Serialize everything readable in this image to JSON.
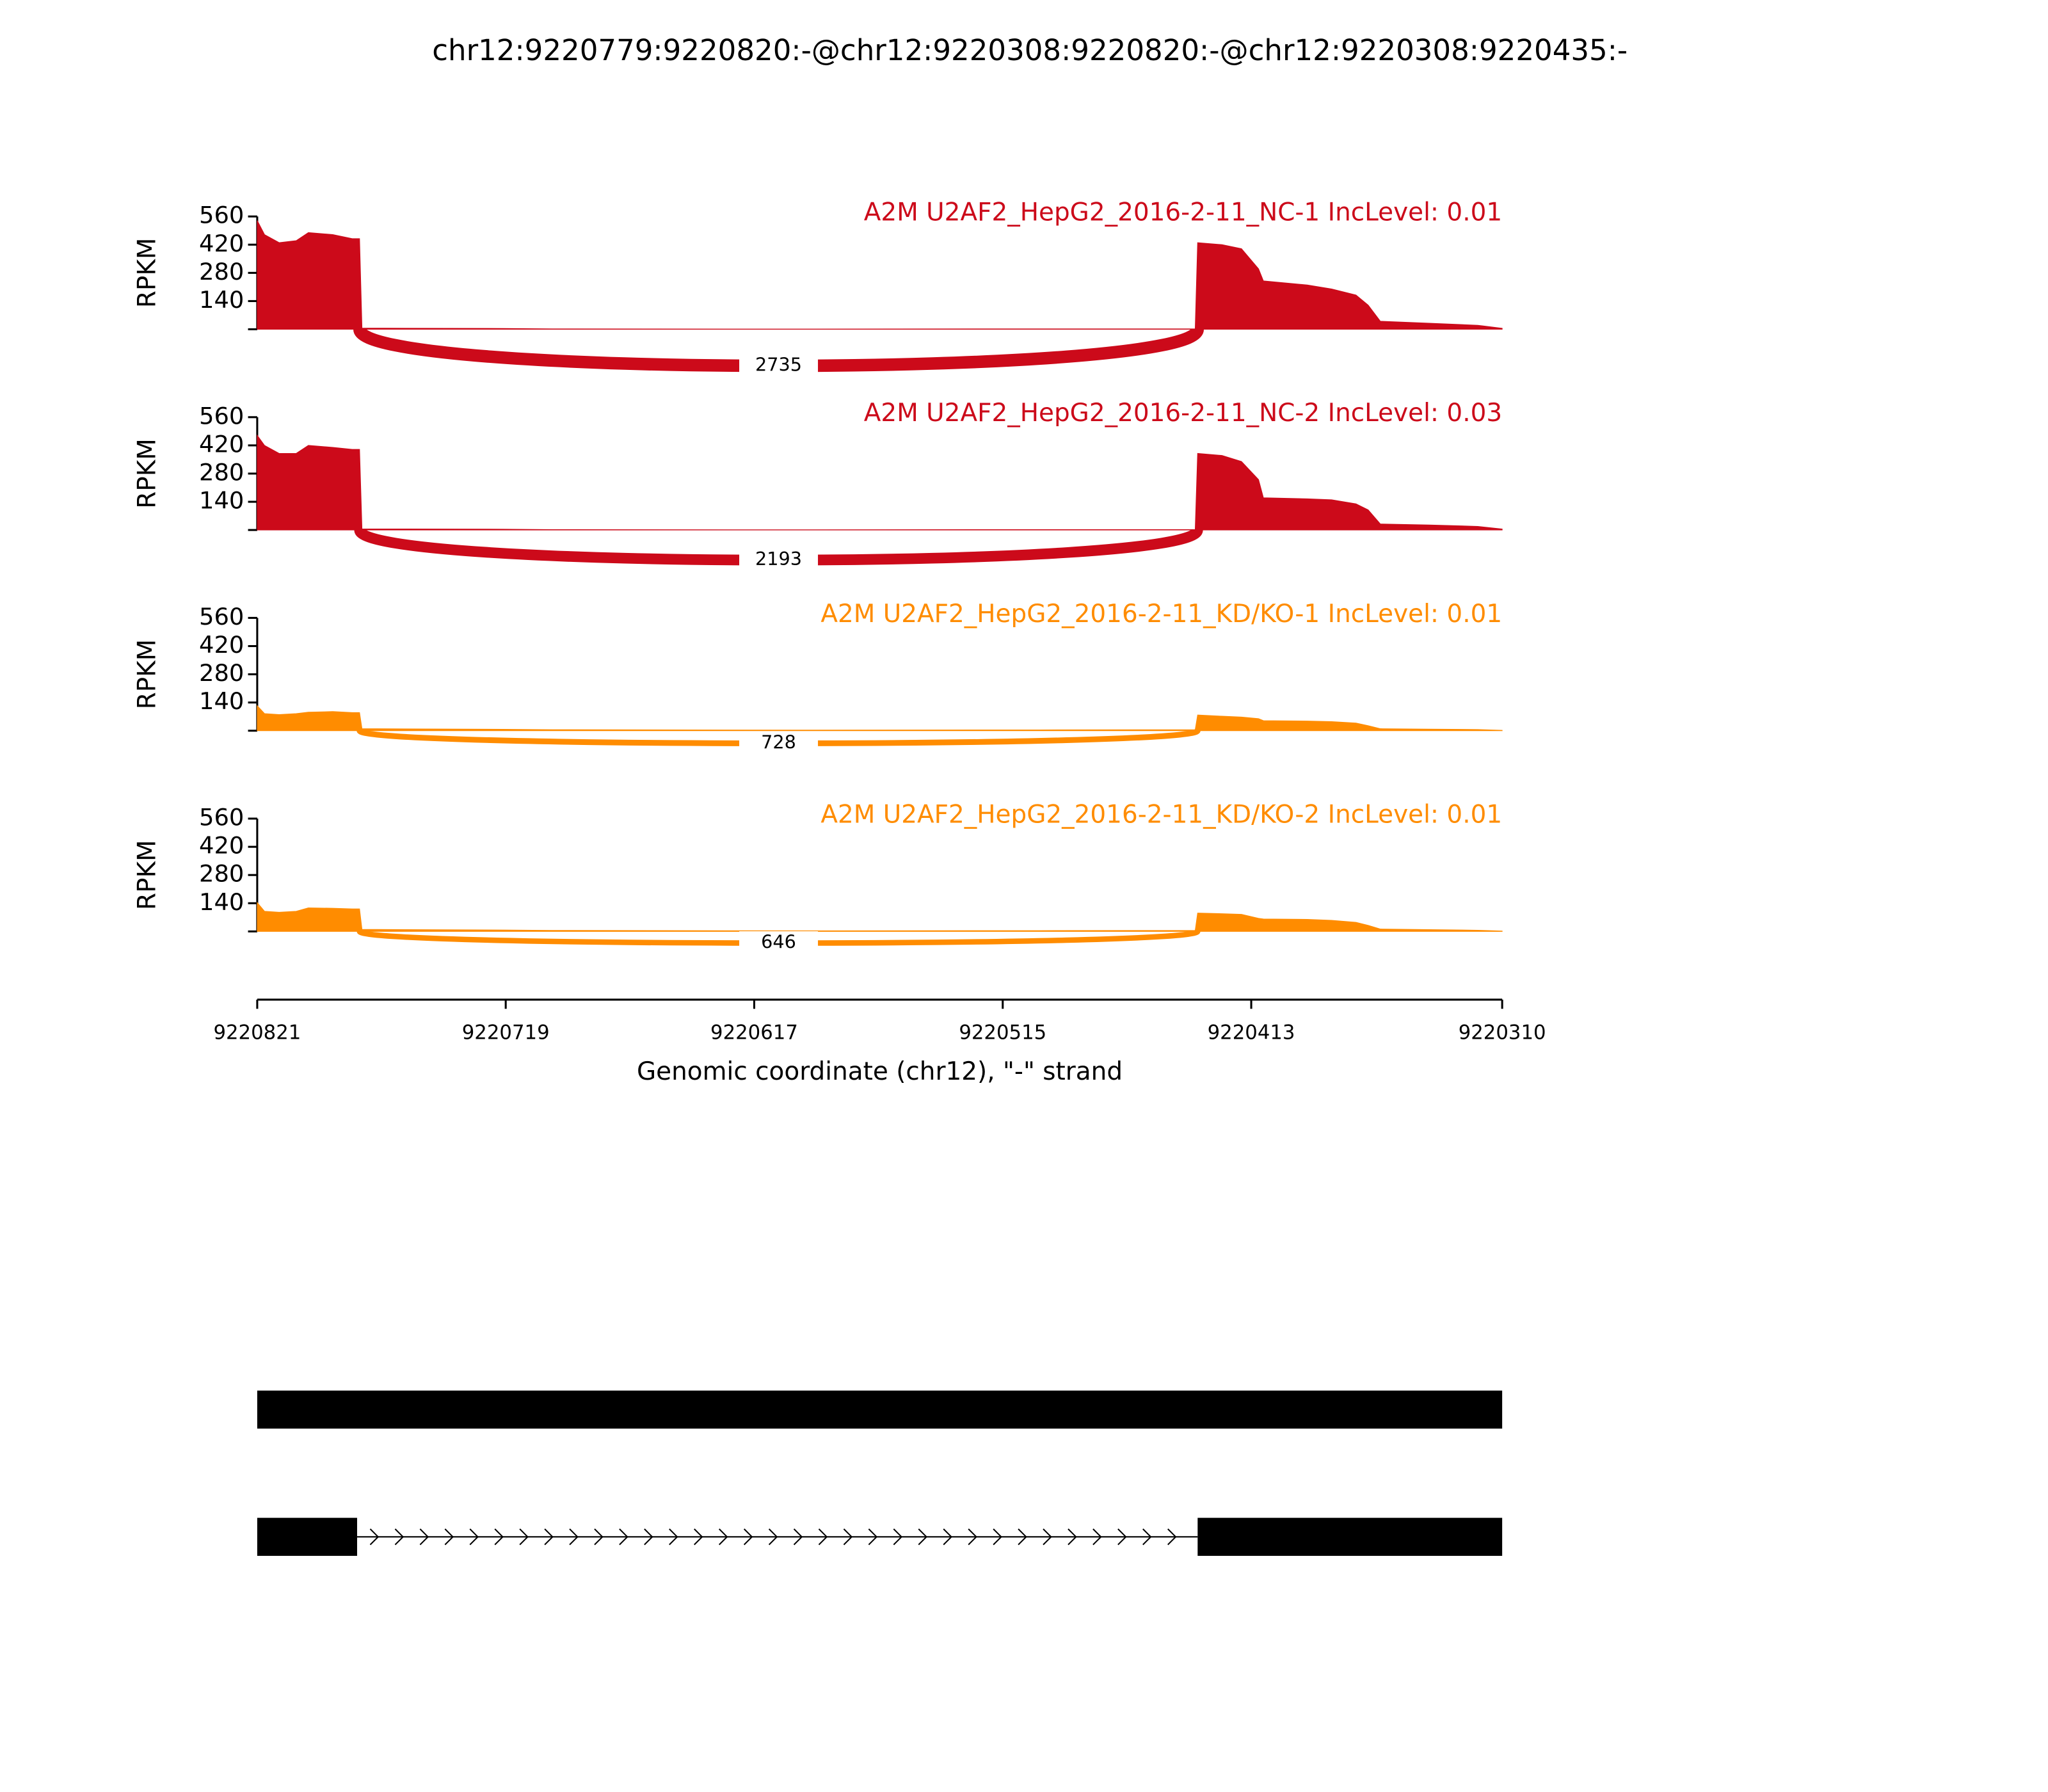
{
  "title": "chr12:9220779:9220820:-@chr12:9220308:9220820:-@chr12:9220308:9220435:-",
  "chart_data": [
    {
      "type": "area",
      "title": "A2M U2AF2_HepG2_2016-2-11_NC-1 IncLevel: 0.01",
      "color": "#cc0a1a",
      "ylabel": "RPKM",
      "x": [
        9220821,
        9220818,
        9220812,
        9220805,
        9220800,
        9220790,
        9220782,
        9220779,
        9220778,
        9220760,
        9220720,
        9220700,
        9220600,
        9220500,
        9220436,
        9220435,
        9220425,
        9220417,
        9220410,
        9220408,
        9220390,
        9220380,
        9220370,
        9220365,
        9220360,
        9220340,
        9220320,
        9220310
      ],
      "values": [
        540,
        470,
        430,
        440,
        480,
        470,
        450,
        450,
        6,
        5,
        4,
        2,
        1,
        2,
        2,
        430,
        420,
        400,
        300,
        240,
        220,
        200,
        170,
        120,
        40,
        30,
        20,
        5
      ],
      "xlim": [
        9220821,
        9220310
      ],
      "ylim": [
        0,
        560
      ],
      "yticks": [
        140,
        280,
        420,
        560
      ],
      "junctions": [
        {
          "start": 9220779,
          "end": 9220435,
          "count": 2735
        }
      ]
    },
    {
      "type": "area",
      "title": "A2M U2AF2_HepG2_2016-2-11_NC-2 IncLevel: 0.03",
      "color": "#cc0a1a",
      "ylabel": "RPKM",
      "x": [
        9220821,
        9220818,
        9220812,
        9220805,
        9220800,
        9220790,
        9220782,
        9220779,
        9220778,
        9220760,
        9220720,
        9220700,
        9220600,
        9220500,
        9220436,
        9220435,
        9220425,
        9220417,
        9220410,
        9220408,
        9220390,
        9220380,
        9220370,
        9220365,
        9220360,
        9220340,
        9220320,
        9220310
      ],
      "values": [
        470,
        420,
        380,
        380,
        420,
        410,
        400,
        400,
        5,
        5,
        4,
        2,
        1,
        2,
        2,
        380,
        370,
        340,
        250,
        160,
        155,
        150,
        130,
        100,
        30,
        25,
        18,
        5
      ],
      "xlim": [
        9220821,
        9220310
      ],
      "ylim": [
        0,
        560
      ],
      "yticks": [
        140,
        280,
        420,
        560
      ],
      "junctions": [
        {
          "start": 9220779,
          "end": 9220435,
          "count": 2193
        }
      ]
    },
    {
      "type": "area",
      "title": "A2M U2AF2_HepG2_2016-2-11_KD/KO-1 IncLevel: 0.01",
      "color": "#ff8c00",
      "ylabel": "RPKM",
      "x": [
        9220821,
        9220818,
        9220812,
        9220805,
        9220800,
        9220790,
        9220782,
        9220779,
        9220778,
        9220760,
        9220720,
        9220700,
        9220600,
        9220500,
        9220436,
        9220435,
        9220425,
        9220417,
        9220410,
        9220408,
        9220390,
        9220380,
        9220370,
        9220365,
        9220360,
        9220340,
        9220320,
        9220310
      ],
      "values": [
        124,
        85,
        80,
        85,
        92,
        95,
        90,
        90,
        10,
        9,
        7,
        5,
        3,
        4,
        5,
        78,
        72,
        68,
        60,
        50,
        48,
        45,
        38,
        25,
        10,
        8,
        6,
        2
      ],
      "xlim": [
        9220821,
        9220310
      ],
      "ylim": [
        0,
        560
      ],
      "yticks": [
        140,
        280,
        420,
        560
      ],
      "junctions": [
        {
          "start": 9220779,
          "end": 9220435,
          "count": 728
        }
      ]
    },
    {
      "type": "area",
      "title": "A2M U2AF2_HepG2_2016-2-11_KD/KO-2 IncLevel: 0.01",
      "color": "#ff8c00",
      "ylabel": "RPKM",
      "x": [
        9220821,
        9220818,
        9220812,
        9220805,
        9220800,
        9220790,
        9220782,
        9220779,
        9220778,
        9220760,
        9220720,
        9220700,
        9220600,
        9220500,
        9220436,
        9220435,
        9220425,
        9220417,
        9220410,
        9220408,
        9220390,
        9220380,
        9220370,
        9220365,
        9220360,
        9220340,
        9220320,
        9220310
      ],
      "values": [
        143,
        100,
        95,
        100,
        117,
        115,
        112,
        112,
        10,
        9,
        7,
        5,
        3,
        4,
        5,
        91,
        88,
        85,
        65,
        62,
        60,
        55,
        45,
        30,
        12,
        9,
        6,
        2
      ],
      "xlim": [
        9220821,
        9220310
      ],
      "ylim": [
        0,
        560
      ],
      "yticks": [
        140,
        280,
        420,
        560
      ],
      "junctions": [
        {
          "start": 9220779,
          "end": 9220435,
          "count": 646
        }
      ],
      "xticks": [
        9220821,
        9220719,
        9220617,
        9220515,
        9220413,
        9220310
      ],
      "xlabel": "Genomic coordinate (chr12), \"-\" strand"
    }
  ],
  "transcripts": [
    {
      "exons": [
        [
          9220821,
          9220310
        ]
      ]
    },
    {
      "exons": [
        [
          9220821,
          9220780
        ],
        [
          9220435,
          9220310
        ]
      ]
    }
  ]
}
